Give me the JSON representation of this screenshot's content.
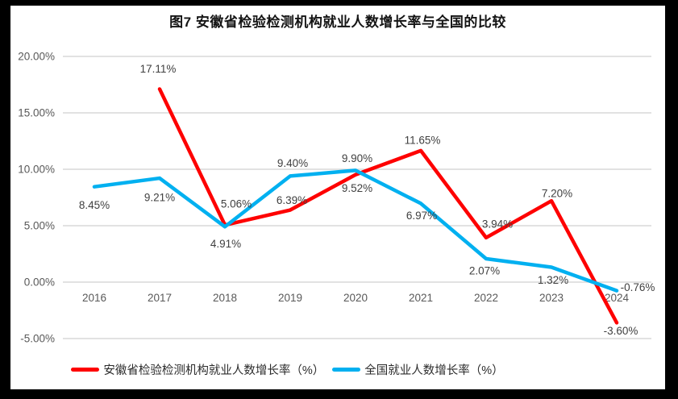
{
  "title": "图7 安徽省检验检测机构就业人数增长率与全国的比较",
  "colors": {
    "anhui_line": "#fe0000",
    "national_line": "#00b0f0",
    "gridline": "#d9d9d9",
    "axis_text": "#595959",
    "data_label_text": "#404040",
    "frame": "#000000",
    "background": "#ffffff"
  },
  "chart_data": {
    "type": "line",
    "x": [
      "2016",
      "2017",
      "2018",
      "2019",
      "2020",
      "2021",
      "2022",
      "2023",
      "2024"
    ],
    "series": [
      {
        "name": "安徽省检验检测机构就业人数增长率（%）",
        "color": "#fe0000",
        "values": [
          null,
          17.11,
          5.06,
          6.39,
          9.52,
          11.65,
          3.94,
          7.2,
          -3.6
        ],
        "point_labels": [
          null,
          "17.11%",
          "5.06%",
          "6.39%",
          "9.52%",
          "11.65%",
          "3.94%",
          "7.20%",
          "-3.60%"
        ]
      },
      {
        "name": "全国就业人数增长率（%）",
        "color": "#00b0f0",
        "values": [
          8.45,
          9.21,
          4.91,
          9.4,
          9.9,
          6.97,
          2.07,
          1.32,
          -0.76
        ],
        "point_labels": [
          "8.45%",
          "9.21%",
          "4.91%",
          "9.40%",
          "9.90%",
          "6.97%",
          "2.07%",
          "1.32%",
          "-0.76%"
        ]
      }
    ],
    "y_axis": {
      "tick_labels": [
        "20.00%",
        "15.00%",
        "10.00%",
        "5.00%",
        "0.00%",
        "-5.00%"
      ],
      "tick_values": [
        20,
        15,
        10,
        5,
        0,
        -5
      ],
      "min": -5,
      "max": 20,
      "format": "percent_2dp"
    },
    "grid": "horizontal",
    "legend_position": "bottom",
    "data_labels": true
  }
}
